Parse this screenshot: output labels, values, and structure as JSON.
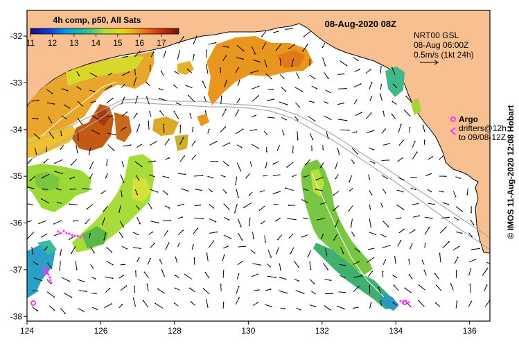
{
  "header": {
    "product": "4h comp, p50, All Sats",
    "date": "08-Aug-2020 08Z"
  },
  "colorbar": {
    "labels": [
      "11",
      "12",
      "13",
      "14",
      "15",
      "16",
      "17"
    ],
    "min": 11,
    "max": 17.8,
    "stops": [
      "#1a0a8c",
      "#0a3ee0",
      "#00a0e8",
      "#22c090",
      "#a8e038",
      "#f0d800",
      "#f08020",
      "#d03010",
      "#7a1008"
    ]
  },
  "current_info": {
    "line1": "NRT00 GSL",
    "line2": "08-Aug 06:00Z",
    "line3": "0.5m/s (1kt 24h)"
  },
  "argo": {
    "label": "Argo",
    "line1": "drifters@12h",
    "line2": "to 09/08-12Z"
  },
  "credit": "© IMOS 11-Aug-2020 12:08 Hobart",
  "axes": {
    "x_ticks": [
      "124",
      "126",
      "128",
      "130",
      "132",
      "134",
      "136"
    ],
    "y_ticks": [
      "-32",
      "-33",
      "-34",
      "-35",
      "-36",
      "-37",
      "-38"
    ],
    "lon_range": [
      124,
      136.55
    ],
    "lat_range": [
      -31.45,
      -38.1
    ]
  },
  "colors": {
    "land": "#f8c090",
    "argo": "#ff33ff",
    "bathymetry": "#aaaaaa",
    "frame": "#000000"
  }
}
